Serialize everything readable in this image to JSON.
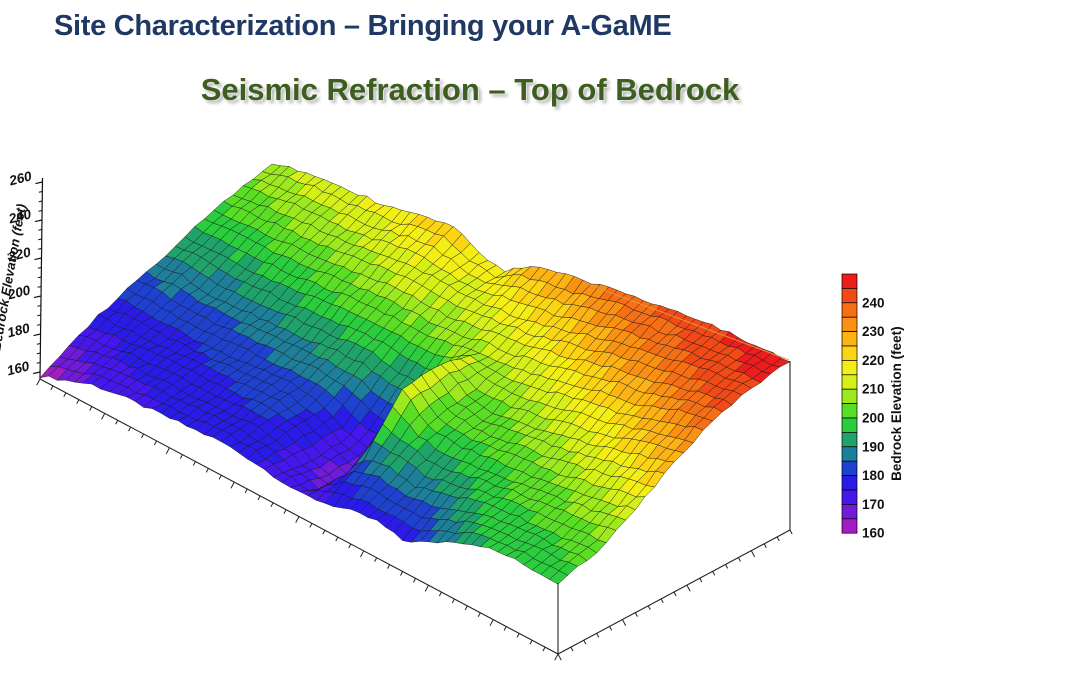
{
  "slide": {
    "title": "Site Characterization – Bringing your A-GaME",
    "subtitle": "Seismic Refraction – Top of Bedrock",
    "title_color": "#1f3864",
    "subtitle_color": "#3e5e1f",
    "background_color": "#ffffff"
  },
  "chart_data": {
    "type": "surface3d",
    "title": "Seismic Refraction – Top of Bedrock",
    "units": "feet",
    "z_axis": {
      "label": "Bedrock Elevation (feet)",
      "range": [
        160,
        260
      ],
      "major_ticks": [
        160,
        180,
        200,
        220,
        240,
        260
      ],
      "minor_tick_step": 5
    },
    "bottom_left_axis": {
      "label": "",
      "tick_count": 41
    },
    "bottom_right_axis": {
      "label": "",
      "tick_count": 19
    },
    "legend": {
      "label": "Bedrock Elevation (feet)",
      "range": [
        160,
        250
      ],
      "band_feet": 5,
      "tick_values": [
        240,
        230,
        220,
        210,
        200,
        190,
        180,
        170,
        160
      ],
      "colors": [
        "#a21cc4",
        "#6f1bd9",
        "#4617ec",
        "#2a1ce6",
        "#1e41d0",
        "#1d7f99",
        "#1fa36b",
        "#2bcc3e",
        "#5ade25",
        "#9cea1e",
        "#d4f018",
        "#f3ee16",
        "#fbd514",
        "#fcb313",
        "#fa9113",
        "#f76f14",
        "#f24a17",
        "#ee1d1d"
      ]
    },
    "surface": {
      "description": "Bedrock elevation grid in feet; 7 rows from front edge to back edge, 21 columns from left end to right end of the survey swath",
      "u_nodes": 21,
      "v_nodes": 7,
      "elevation_grid_feet": [
        [
          161,
          166,
          171,
          173,
          174,
          175,
          176,
          177,
          176,
          174,
          172,
          174,
          177,
          179,
          176,
          182,
          190,
          195,
          197,
          197,
          197
        ],
        [
          172,
          174,
          176,
          177,
          178,
          178,
          179,
          180,
          178,
          171,
          167,
          186,
          189,
          186,
          190,
          194,
          198,
          199,
          200,
          201,
          202
        ],
        [
          180,
          181,
          180,
          180,
          181,
          182,
          183,
          184,
          180,
          173,
          170,
          212,
          200,
          198,
          199,
          201,
          202,
          204,
          207,
          210,
          214
        ],
        [
          187,
          188,
          186,
          187,
          188,
          189,
          190,
          192,
          193,
          189,
          190,
          214,
          205,
          203,
          205,
          208,
          211,
          215,
          219,
          223,
          227
        ],
        [
          195,
          196,
          196,
          197,
          198,
          200,
          202,
          203,
          204,
          204,
          206,
          209,
          210,
          213,
          216,
          220,
          224,
          225,
          231,
          236,
          239
        ],
        [
          202,
          204,
          206,
          207,
          208,
          210,
          213,
          214,
          214,
          213,
          215,
          217,
          220,
          224,
          228,
          232,
          235,
          238,
          241,
          243,
          245
        ],
        [
          207,
          211,
          214,
          215,
          216,
          218,
          222,
          225,
          218,
          216,
          226,
          230,
          232,
          236,
          239,
          241,
          243,
          245,
          246,
          247,
          248
        ]
      ]
    }
  }
}
